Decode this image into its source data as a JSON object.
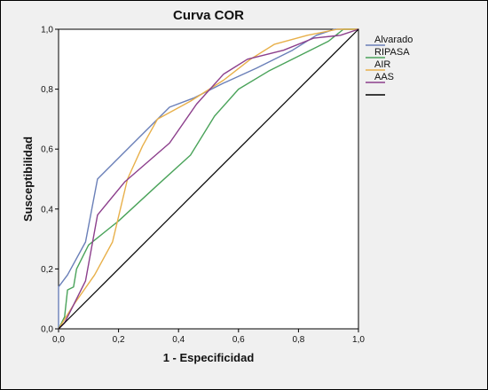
{
  "chart_data": {
    "type": "line",
    "title": "Curva COR",
    "xlabel": "1 - Especificidad",
    "ylabel": "Susceptibilidad",
    "xlim": [
      0,
      1
    ],
    "ylim": [
      0,
      1
    ],
    "x_ticks": [
      "0,0",
      "0,2",
      "0,4",
      "0,6",
      "0,8",
      "1,0"
    ],
    "y_ticks": [
      "0,0",
      "0,2",
      "0,4",
      "0,6",
      "0,8",
      "1,0"
    ],
    "grid": false,
    "legend_position": "right",
    "series": [
      {
        "name": "Alvarado",
        "color": "#6a7fb8",
        "points": [
          [
            0,
            0
          ],
          [
            0,
            0.14
          ],
          [
            0.03,
            0.18
          ],
          [
            0.09,
            0.29
          ],
          [
            0.13,
            0.5
          ],
          [
            0.25,
            0.62
          ],
          [
            0.37,
            0.74
          ],
          [
            0.45,
            0.77
          ],
          [
            0.55,
            0.82
          ],
          [
            0.66,
            0.87
          ],
          [
            0.78,
            0.93
          ],
          [
            0.86,
            0.98
          ],
          [
            0.92,
            1.0
          ],
          [
            1.0,
            1.0
          ]
        ]
      },
      {
        "name": "RIPASA",
        "color": "#4aa35a",
        "points": [
          [
            0,
            0
          ],
          [
            0.02,
            0.04
          ],
          [
            0.03,
            0.13
          ],
          [
            0.05,
            0.14
          ],
          [
            0.06,
            0.2
          ],
          [
            0.1,
            0.28
          ],
          [
            0.2,
            0.36
          ],
          [
            0.33,
            0.48
          ],
          [
            0.44,
            0.58
          ],
          [
            0.52,
            0.71
          ],
          [
            0.6,
            0.8
          ],
          [
            0.7,
            0.86
          ],
          [
            0.8,
            0.91
          ],
          [
            0.9,
            0.96
          ],
          [
            0.95,
            1.0
          ],
          [
            1.0,
            1.0
          ]
        ]
      },
      {
        "name": "AIR",
        "color": "#e8b04a",
        "points": [
          [
            0,
            0
          ],
          [
            0.05,
            0.08
          ],
          [
            0.12,
            0.18
          ],
          [
            0.18,
            0.29
          ],
          [
            0.23,
            0.5
          ],
          [
            0.28,
            0.61
          ],
          [
            0.33,
            0.7
          ],
          [
            0.44,
            0.76
          ],
          [
            0.55,
            0.83
          ],
          [
            0.64,
            0.9
          ],
          [
            0.72,
            0.95
          ],
          [
            0.83,
            0.98
          ],
          [
            0.93,
            1.0
          ],
          [
            1.0,
            1.0
          ]
        ]
      },
      {
        "name": "AAS",
        "color": "#8c3f8c",
        "points": [
          [
            0,
            0
          ],
          [
            0.02,
            0.02
          ],
          [
            0.05,
            0.08
          ],
          [
            0.09,
            0.16
          ],
          [
            0.13,
            0.38
          ],
          [
            0.22,
            0.49
          ],
          [
            0.37,
            0.62
          ],
          [
            0.46,
            0.75
          ],
          [
            0.55,
            0.85
          ],
          [
            0.63,
            0.9
          ],
          [
            0.75,
            0.93
          ],
          [
            0.85,
            0.97
          ],
          [
            0.94,
            0.98
          ],
          [
            1.0,
            1.0
          ]
        ]
      },
      {
        "name": "",
        "color": "#000000",
        "points": [
          [
            0,
            0
          ],
          [
            1,
            1
          ]
        ]
      }
    ]
  }
}
